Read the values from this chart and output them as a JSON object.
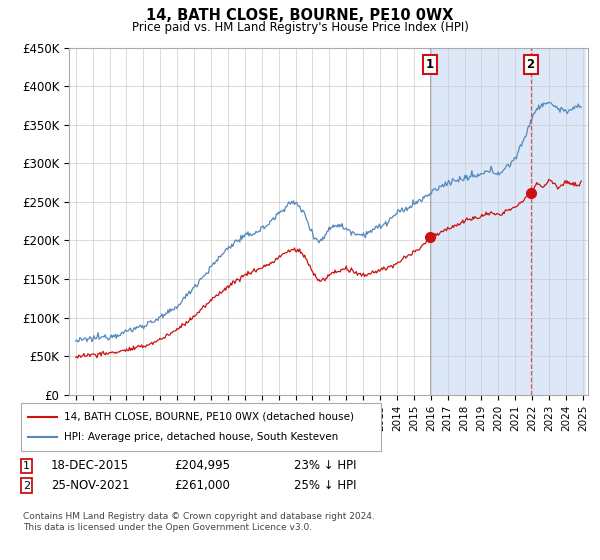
{
  "title": "14, BATH CLOSE, BOURNE, PE10 0WX",
  "subtitle": "Price paid vs. HM Land Registry's House Price Index (HPI)",
  "ylim": [
    0,
    450000
  ],
  "yticks": [
    0,
    50000,
    100000,
    150000,
    200000,
    250000,
    300000,
    350000,
    400000,
    450000
  ],
  "ytick_labels": [
    "£0",
    "£50K",
    "£100K",
    "£150K",
    "£200K",
    "£250K",
    "£300K",
    "£350K",
    "£400K",
    "£450K"
  ],
  "hpi_color": "#5588bb",
  "price_color": "#cc1111",
  "marker1_date": 2015.96,
  "marker1_price": 204995,
  "marker2_date": 2021.9,
  "marker2_price": 261000,
  "legend_label1": "14, BATH CLOSE, BOURNE, PE10 0WX (detached house)",
  "legend_label2": "HPI: Average price, detached house, South Kesteven",
  "footer": "Contains HM Land Registry data © Crown copyright and database right 2024.\nThis data is licensed under the Open Government Licence v3.0.",
  "background_right": "#dce8f8",
  "grid_color": "#cccccc",
  "vline1_color": "#888888",
  "vline2_color": "#dd3333"
}
